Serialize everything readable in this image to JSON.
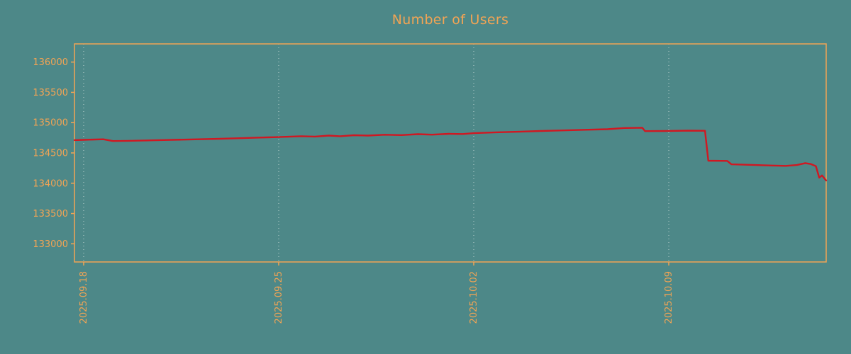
{
  "colors": {
    "background": "#4D8888",
    "axis": "#F2A454",
    "text": "#F2A454",
    "line": "#D01822",
    "grid": "#E8F0EC"
  },
  "chart_data": {
    "type": "line",
    "title": "Number of Users",
    "xlabel": "",
    "ylabel": "",
    "x_tick_labels": [
      "2025.09.18",
      "2025.09.25",
      "2025.10.02",
      "2025.10.09"
    ],
    "x_tick_days": [
      0,
      7,
      14,
      21
    ],
    "xlim_days": [
      -0.33,
      26.65
    ],
    "y_ticks": [
      133000,
      133500,
      134000,
      134500,
      135000,
      135500,
      136000
    ],
    "ylim": [
      132700,
      136300
    ],
    "grid": "vertical-dotted",
    "legend": "none",
    "series": [
      {
        "name": "users",
        "points": [
          [
            -0.33,
            134712
          ],
          [
            0,
            134716
          ],
          [
            0.7,
            134726
          ],
          [
            1.05,
            134696
          ],
          [
            1.6,
            134700
          ],
          [
            2.2,
            134706
          ],
          [
            3,
            134714
          ],
          [
            4,
            134724
          ],
          [
            4.9,
            134734
          ],
          [
            5.5,
            134742
          ],
          [
            6.2,
            134752
          ],
          [
            7,
            134762
          ],
          [
            7.8,
            134776
          ],
          [
            8.3,
            134770
          ],
          [
            8.8,
            134786
          ],
          [
            9.2,
            134776
          ],
          [
            9.7,
            134792
          ],
          [
            10.2,
            134786
          ],
          [
            10.8,
            134800
          ],
          [
            11.4,
            134794
          ],
          [
            12,
            134810
          ],
          [
            12.5,
            134802
          ],
          [
            13.1,
            134816
          ],
          [
            13.6,
            134812
          ],
          [
            14,
            134826
          ],
          [
            14.8,
            134840
          ],
          [
            15.6,
            134850
          ],
          [
            16.4,
            134862
          ],
          [
            17.2,
            134872
          ],
          [
            18,
            134882
          ],
          [
            18.8,
            134892
          ],
          [
            19.4,
            134912
          ],
          [
            20.05,
            134916
          ],
          [
            20.15,
            134860
          ],
          [
            20.9,
            134862
          ],
          [
            21.7,
            134868
          ],
          [
            22.3,
            134866
          ],
          [
            22.42,
            134372
          ],
          [
            23.1,
            134368
          ],
          [
            23.25,
            134312
          ],
          [
            24,
            134302
          ],
          [
            24.7,
            134292
          ],
          [
            25.2,
            134286
          ],
          [
            25.6,
            134300
          ],
          [
            25.9,
            134332
          ],
          [
            26.1,
            134316
          ],
          [
            26.28,
            134282
          ],
          [
            26.4,
            134092
          ],
          [
            26.5,
            134128
          ],
          [
            26.65,
            134044
          ]
        ]
      }
    ]
  }
}
